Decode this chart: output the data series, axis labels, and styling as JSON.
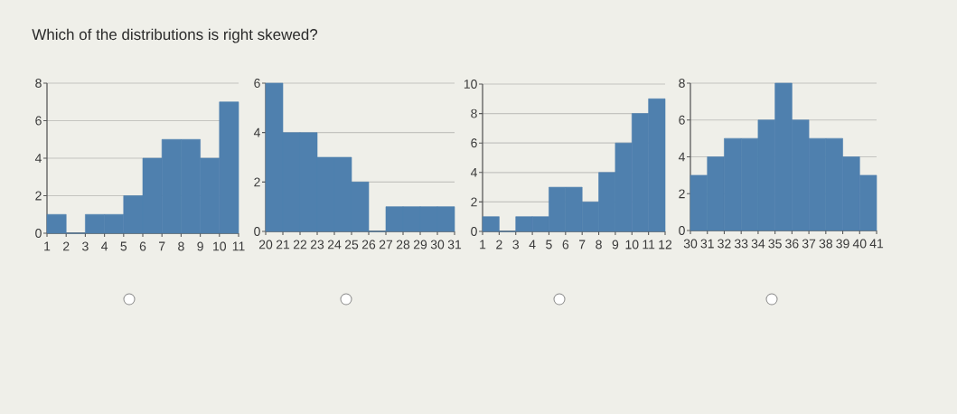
{
  "chart_data": [
    {
      "type": "histogram",
      "title": "Which of the distributions is right skewed?",
      "bins": [
        1,
        2,
        3,
        4,
        5,
        6,
        7,
        8,
        9,
        10,
        11
      ],
      "values": [
        1,
        0,
        1,
        1,
        2,
        4,
        5,
        5,
        4,
        7
      ],
      "color": "#4f80ae",
      "xlim": [
        1,
        11
      ],
      "xticks": [
        1,
        2,
        3,
        4,
        5,
        6,
        7,
        8,
        9,
        10,
        11
      ],
      "ylim": [
        0,
        8
      ],
      "yticks": [
        0,
        2,
        4,
        6,
        8
      ],
      "grid": "y"
    },
    {
      "type": "histogram",
      "bins": [
        20,
        21,
        22,
        23,
        24,
        25,
        26,
        27,
        28,
        29,
        30,
        31
      ],
      "values": [
        6,
        4,
        4,
        3,
        3,
        2,
        0,
        1,
        1,
        1,
        1
      ],
      "color": "#4f80ae",
      "xlim": [
        20,
        31
      ],
      "xticks": [
        20,
        21,
        22,
        23,
        24,
        25,
        26,
        27,
        28,
        29,
        30,
        31
      ],
      "ylim": [
        0,
        6
      ],
      "yticks": [
        0,
        2,
        4,
        6
      ],
      "grid": "y"
    },
    {
      "type": "histogram",
      "bins": [
        1,
        2,
        3,
        4,
        5,
        6,
        7,
        8,
        9,
        10,
        11,
        12
      ],
      "values": [
        1,
        0,
        1,
        1,
        3,
        3,
        2,
        4,
        6,
        8,
        9
      ],
      "color": "#4f80ae",
      "xlim": [
        1,
        12
      ],
      "xticks": [
        1,
        2,
        3,
        4,
        5,
        6,
        7,
        8,
        9,
        10,
        11,
        12
      ],
      "ylim": [
        0,
        10
      ],
      "yticks": [
        0,
        2,
        4,
        6,
        8,
        10
      ],
      "grid": "y"
    },
    {
      "type": "histogram",
      "bins": [
        30,
        31,
        32,
        33,
        34,
        35,
        36,
        37,
        38,
        39,
        40,
        41
      ],
      "values": [
        3,
        4,
        5,
        5,
        6,
        8,
        6,
        5,
        5,
        4,
        3
      ],
      "color": "#4f80ae",
      "xlim": [
        30,
        41
      ],
      "xticks": [
        30,
        31,
        32,
        33,
        34,
        35,
        36,
        37,
        38,
        39,
        40,
        41
      ],
      "ylim": [
        0,
        8
      ],
      "yticks": [
        0,
        2,
        4,
        6,
        8
      ],
      "grid": "y"
    }
  ]
}
